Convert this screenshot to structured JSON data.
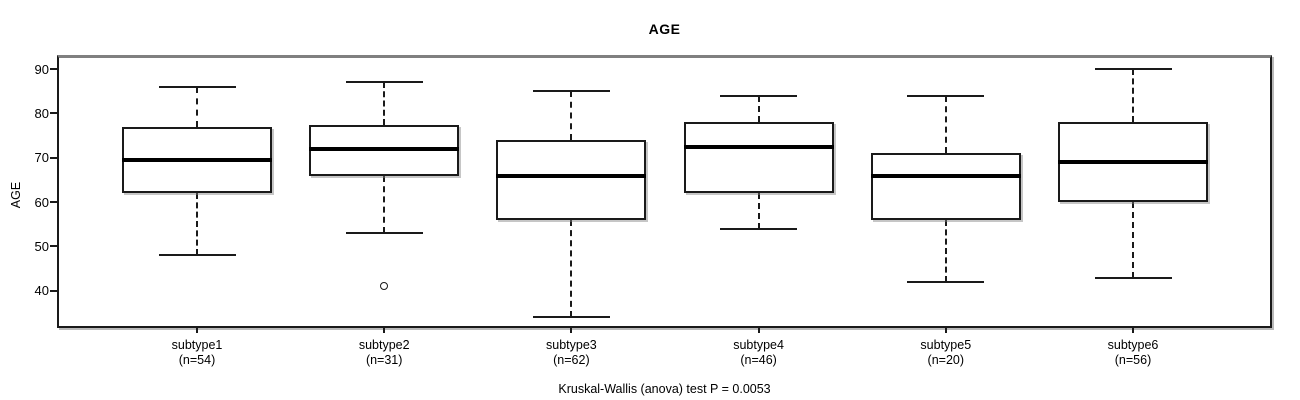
{
  "chart_data": {
    "type": "boxplot",
    "title": "AGE",
    "ylabel": "AGE",
    "caption": "Kruskal-Wallis (anova) test P = 0.0053",
    "y_ticks": [
      40,
      50,
      60,
      70,
      80,
      90
    ],
    "y_axis_range": [
      32.3,
      92.5
    ],
    "grid": "off",
    "legend": "none",
    "categories": [
      "subtype1",
      "subtype2",
      "subtype3",
      "subtype4",
      "subtype5",
      "subtype6"
    ],
    "series": [
      {
        "label": "subtype1",
        "sublabel": "(n=54)",
        "n": 54,
        "whisker_low": 48,
        "q1": 62,
        "median": 69.5,
        "q3": 77,
        "whisker_high": 86,
        "outliers": []
      },
      {
        "label": "subtype2",
        "sublabel": "(n=31)",
        "n": 31,
        "whisker_low": 53,
        "q1": 66,
        "median": 72,
        "q3": 77.5,
        "whisker_high": 87,
        "outliers": [
          41
        ]
      },
      {
        "label": "subtype3",
        "sublabel": "(n=62)",
        "n": 62,
        "whisker_low": 34,
        "q1": 56,
        "median": 66,
        "q3": 74,
        "whisker_high": 85,
        "outliers": []
      },
      {
        "label": "subtype4",
        "sublabel": "(n=46)",
        "n": 46,
        "whisker_low": 54,
        "q1": 62,
        "median": 72.5,
        "q3": 78,
        "whisker_high": 84,
        "outliers": []
      },
      {
        "label": "subtype5",
        "sublabel": "(n=20)",
        "n": 20,
        "whisker_low": 42,
        "q1": 56,
        "median": 66,
        "q3": 71,
        "whisker_high": 84,
        "outliers": []
      },
      {
        "label": "subtype6",
        "sublabel": "(n=56)",
        "n": 56,
        "whisker_low": 43,
        "q1": 60,
        "median": 69,
        "q3": 78,
        "whisker_high": 90,
        "outliers": []
      }
    ]
  }
}
